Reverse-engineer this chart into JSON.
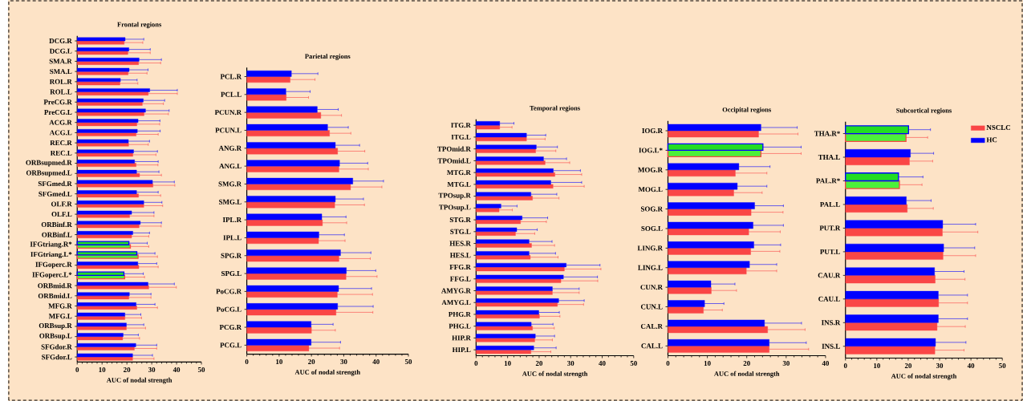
{
  "chart_data": [
    {
      "type": "bar",
      "orientation": "horizontal",
      "title": "Frontal regions",
      "xlabel": "AUC of nodal strength",
      "xlim": [
        0,
        50
      ],
      "xticks": [
        0,
        10,
        20,
        30,
        40,
        50
      ],
      "categories": [
        "DCG.R",
        "DCG.L",
        "SMA.R",
        "SMA.L",
        "ROL.R",
        "ROL.L",
        "PreCG.R",
        "PreCG.L",
        "ACG.R",
        "ACG.L",
        "REC.R",
        "REC.L",
        "ORBsupmed.R",
        "ORBsupmed.L",
        "SFGmed.R",
        "SFGmed.L",
        "OLF.R",
        "OLF.L",
        "ORBinf.R",
        "ORBinf.L",
        "IFGtriang.R*",
        "IFGtriang.L*",
        "IFGoperc.R",
        "IFGoperc.L*",
        "ORBmid.R",
        "ORBmid.L",
        "MFG.R",
        "MFG.L",
        "ORBsup.R",
        "ORBsup.L",
        "SFGdor.R",
        "SFGdor.L"
      ],
      "series": [
        {
          "color": "#fa4646",
          "colors": [
            "#fa4646",
            "#fa4646",
            "#fa4646",
            "#fa4646",
            "#fa4646",
            "#fa4646",
            "#fa4646",
            "#fa4646",
            "#fa4646",
            "#fa4646",
            "#fa4646",
            "#fa4646",
            "#fa4646",
            "#fa4646",
            "#fa4646",
            "#fa4646",
            "#fa4646",
            "#fa4646",
            "#fa4646",
            "#fa4646",
            "#4cf03a",
            "#4cf03a",
            "#fa4646",
            "#4cf03a",
            "#fa4646",
            "#fa4646",
            "#fa4646",
            "#fa4646",
            "#fa4646",
            "#fa4646",
            "#fa4646",
            "#fa4646"
          ],
          "values": [
            18.9,
            20.4,
            24.7,
            20.5,
            17.2,
            28.6,
            26.2,
            26.9,
            24.0,
            23.7,
            20.7,
            22.4,
            23.7,
            25.1,
            30.5,
            24.7,
            26.8,
            21.1,
            24.9,
            21.9,
            21.4,
            24.5,
            24.8,
            19.1,
            28.8,
            20.8,
            24.0,
            19.2,
            19.8,
            18.3,
            23.0,
            22.3
          ],
          "errors": [
            [
              18.9,
              26.4
            ],
            [
              20.4,
              29.4
            ],
            [
              24.7,
              33.6
            ],
            [
              20.5,
              28.1
            ],
            [
              17.2,
              24.4
            ],
            [
              28.6,
              40.3
            ],
            [
              26.2,
              34.7
            ],
            [
              26.9,
              36.7
            ],
            [
              24.0,
              33.2
            ],
            [
              23.7,
              32.6
            ],
            [
              20.7,
              28.6
            ],
            [
              22.4,
              31.7
            ],
            [
              23.7,
              32.5
            ],
            [
              25.1,
              33.9
            ],
            [
              30.5,
              39.3
            ],
            [
              24.7,
              33.6
            ],
            [
              26.8,
              34.4
            ],
            [
              21.1,
              30.9
            ],
            [
              24.9,
              33.8
            ],
            [
              21.9,
              28.8
            ],
            [
              21.4,
              28.8
            ],
            [
              24.5,
              32.3
            ],
            [
              24.8,
              32.6
            ],
            [
              19.1,
              27.1
            ],
            [
              28.8,
              39.9
            ],
            [
              20.8,
              29.7
            ],
            [
              24.0,
              32.3
            ],
            [
              19.2,
              25.9
            ],
            [
              19.8,
              27.5
            ],
            [
              18.3,
              25.1
            ],
            [
              23.0,
              32.0
            ],
            [
              22.3,
              30.9
            ]
          ]
        },
        {
          "color": "#0000ff",
          "colors": [
            "#0000ff",
            "#0000ff",
            "#0000ff",
            "#0000ff",
            "#0000ff",
            "#0000ff",
            "#0000ff",
            "#0000ff",
            "#0000ff",
            "#0000ff",
            "#0000ff",
            "#0000ff",
            "#0000ff",
            "#0000ff",
            "#0000ff",
            "#0000ff",
            "#0000ff",
            "#0000ff",
            "#0000ff",
            "#0000ff",
            "#22dd22",
            "#22dd22",
            "#0000ff",
            "#22dd22",
            "#0000ff",
            "#0000ff",
            "#0000ff",
            "#0000ff",
            "#0000ff",
            "#0000ff",
            "#0000ff",
            "#0000ff"
          ],
          "values": [
            19.3,
            20.8,
            24.9,
            20.9,
            17.4,
            29.2,
            26.6,
            27.5,
            24.5,
            24.2,
            20.6,
            22.7,
            23.1,
            23.9,
            30.3,
            23.9,
            26.8,
            21.9,
            25.4,
            22.4,
            20.8,
            24.0,
            24.4,
            18.8,
            28.5,
            21.0,
            23.7,
            19.2,
            19.8,
            18.5,
            23.6,
            22.3
          ],
          "errors": [
            [
              19.3,
              26.8
            ],
            [
              20.8,
              29.4
            ],
            [
              24.9,
              33.9
            ],
            [
              20.9,
              28.5
            ],
            [
              17.4,
              24.1
            ],
            [
              29.2,
              40.3
            ],
            [
              26.6,
              35.2
            ],
            [
              27.5,
              37.0
            ],
            [
              24.5,
              33.3
            ],
            [
              24.2,
              33.4
            ],
            [
              20.6,
              29.1
            ],
            [
              22.7,
              32.3
            ],
            [
              23.1,
              32.6
            ],
            [
              23.9,
              32.9
            ],
            [
              30.3,
              39.1
            ],
            [
              23.9,
              32.6
            ],
            [
              26.8,
              34.1
            ],
            [
              21.9,
              30.9
            ],
            [
              25.4,
              33.9
            ],
            [
              22.4,
              29.1
            ],
            [
              20.8,
              28.2
            ],
            [
              24.0,
              31.3
            ],
            [
              24.4,
              32.0
            ],
            [
              18.8,
              26.6
            ],
            [
              28.5,
              39.1
            ],
            [
              21.0,
              29.7
            ],
            [
              23.7,
              31.3
            ],
            [
              19.2,
              25.6
            ],
            [
              19.8,
              26.8
            ],
            [
              18.5,
              24.6
            ],
            [
              23.6,
              32.0
            ],
            [
              22.3,
              30.3
            ]
          ]
        }
      ]
    },
    {
      "type": "bar",
      "orientation": "horizontal",
      "title": "Parietal regions",
      "xlabel": "AUC of nodal strength",
      "xlim": [
        0,
        50
      ],
      "xticks": [
        0,
        10,
        20,
        30,
        40,
        50
      ],
      "categories": [
        "PCL.R",
        "PCL.L",
        "PCUN.R",
        "PCUN.L",
        "ANG.R",
        "ANG.L",
        "SMG.R",
        "SMG.L",
        "IPL.R",
        "IPL.L",
        "SPG.R",
        "SPG.L",
        "PoCG.R",
        "PoCG.L",
        "PCG.R",
        "PCG.L"
      ],
      "series": [
        {
          "color": "#fa4646",
          "values": [
            13.4,
            12.2,
            22.9,
            25.6,
            28.1,
            28.5,
            32.1,
            27.2,
            23.4,
            22.2,
            28.5,
            30.7,
            28.0,
            27.6,
            20.0,
            19.2
          ],
          "errors": [
            [
              13.4,
              21.1
            ],
            [
              12.2,
              19.1
            ],
            [
              22.9,
              29.3
            ],
            [
              25.6,
              32.2
            ],
            [
              28.1,
              36.5
            ],
            [
              28.5,
              37.6
            ],
            [
              32.1,
              41.8
            ],
            [
              27.2,
              36.4
            ],
            [
              23.4,
              30.9
            ],
            [
              22.2,
              30.4
            ],
            [
              28.5,
              38.2
            ],
            [
              30.7,
              40.3
            ],
            [
              28.0,
              38.9
            ],
            [
              27.6,
              39.0
            ],
            [
              20.0,
              27.4
            ],
            [
              19.2,
              28.7
            ]
          ]
        },
        {
          "color": "#0000ff",
          "values": [
            13.8,
            12.1,
            21.8,
            25.0,
            27.4,
            28.7,
            32.8,
            27.4,
            23.2,
            22.3,
            29.0,
            30.8,
            28.4,
            28.1,
            19.9,
            19.9
          ],
          "errors": [
            [
              13.8,
              22.0
            ],
            [
              12.1,
              19.6
            ],
            [
              21.8,
              28.3
            ],
            [
              25.0,
              31.4
            ],
            [
              27.4,
              34.9
            ],
            [
              28.7,
              37.4
            ],
            [
              32.8,
              42.3
            ],
            [
              27.4,
              36.1
            ],
            [
              23.2,
              30.7
            ],
            [
              22.3,
              30.2
            ],
            [
              29.0,
              38.4
            ],
            [
              30.8,
              39.9
            ],
            [
              28.4,
              38.6
            ],
            [
              28.1,
              39.1
            ],
            [
              19.9,
              26.7
            ],
            [
              19.9,
              29.0
            ]
          ]
        }
      ]
    },
    {
      "type": "bar",
      "orientation": "horizontal",
      "title": "Temporal regions",
      "xlabel": "AUC of nodal strength",
      "xlim": [
        0,
        50
      ],
      "xticks": [
        0,
        10,
        20,
        30,
        40,
        50
      ],
      "categories": [
        "ITG.R",
        "ITG.L",
        "TPOmid.R",
        "TPOmid.L",
        "MTG.R",
        "MTG.L",
        "TPOsup.R",
        "TPOsup.L",
        "STG.R",
        "STG.L",
        "HES.R",
        "HES.L",
        "FFG.R",
        "FFG.L",
        "AMYG.R",
        "AMYG.L",
        "PHG.R",
        "PHG.L",
        "HIP.R",
        "HIP.L"
      ],
      "series": [
        {
          "color": "#fa4646",
          "values": [
            7.5,
            16.0,
            18.9,
            21.9,
            25.0,
            24.4,
            17.9,
            7.3,
            14.1,
            12.5,
            17.6,
            17.2,
            28.0,
            26.9,
            24.2,
            25.8,
            20.1,
            17.9,
            18.6,
            17.4
          ],
          "errors": [
            [
              7.5,
              11.4
            ],
            [
              16.0,
              21.9
            ],
            [
              18.9,
              25.3
            ],
            [
              21.9,
              29.7
            ],
            [
              25.0,
              33.5
            ],
            [
              24.4,
              34.3
            ],
            [
              17.9,
              26.3
            ],
            [
              7.3,
              11.5
            ],
            [
              14.1,
              22.3
            ],
            [
              12.5,
              18.6
            ],
            [
              17.6,
              24.9
            ],
            [
              17.2,
              26.0
            ],
            [
              28.0,
              39.6
            ],
            [
              26.9,
              38.6
            ],
            [
              24.2,
              32.7
            ],
            [
              25.8,
              34.1
            ],
            [
              20.1,
              26.6
            ],
            [
              17.9,
              24.8
            ],
            [
              18.6,
              24.2
            ],
            [
              17.4,
              23.7
            ]
          ]
        },
        {
          "color": "#0000ff",
          "values": [
            7.5,
            16.0,
            19.1,
            21.4,
            24.5,
            23.7,
            17.4,
            7.9,
            14.6,
            12.9,
            16.8,
            16.8,
            28.6,
            27.7,
            24.2,
            26.2,
            19.9,
            17.5,
            18.8,
            18.3
          ],
          "errors": [
            [
              7.5,
              12.0
            ],
            [
              16.0,
              22.1
            ],
            [
              19.1,
              25.8
            ],
            [
              21.4,
              28.7
            ],
            [
              24.5,
              33.1
            ],
            [
              23.7,
              33.5
            ],
            [
              17.4,
              25.6
            ],
            [
              7.9,
              13.0
            ],
            [
              14.6,
              22.7
            ],
            [
              12.9,
              19.4
            ],
            [
              16.8,
              24.1
            ],
            [
              16.8,
              25.2
            ],
            [
              28.6,
              39.3
            ],
            [
              27.7,
              38.5
            ],
            [
              24.2,
              32.7
            ],
            [
              26.2,
              34.3
            ],
            [
              19.9,
              26.4
            ],
            [
              17.5,
              24.4
            ],
            [
              18.8,
              24.9
            ],
            [
              18.3,
              25.4
            ]
          ]
        }
      ]
    },
    {
      "type": "bar",
      "orientation": "horizontal",
      "title": "Occipital regions",
      "xlabel": "AUC of nodal strength",
      "xlim": [
        0,
        40
      ],
      "xticks": [
        0,
        10,
        20,
        30,
        40
      ],
      "categories": [
        "IOG.R",
        "IOG.L*",
        "MOG.R",
        "MOG.L",
        "SOG.R",
        "SOG.L",
        "LING.R",
        "LING.L",
        "CUN.R",
        "CUN.L",
        "CAL.R",
        "CAL.L"
      ],
      "series": [
        {
          "color": "#fa4646",
          "colors": [
            "#fa4646",
            "#4cf03a",
            "#fa4646",
            "#fa4646",
            "#fa4646",
            "#fa4646",
            "#fa4646",
            "#fa4646",
            "#fa4646",
            "#fa4646",
            "#fa4646",
            "#fa4646"
          ],
          "values": [
            23.0,
            23.6,
            17.1,
            16.7,
            21.1,
            20.5,
            21.0,
            19.9,
            11.0,
            9.0,
            25.3,
            25.7
          ],
          "errors": [
            [
              23.0,
              33.0
            ],
            [
              23.6,
              33.8
            ],
            [
              17.1,
              25.1
            ],
            [
              16.7,
              23.9
            ],
            [
              21.1,
              29.2
            ],
            [
              20.5,
              28.5
            ],
            [
              21.0,
              28.4
            ],
            [
              19.9,
              27.6
            ],
            [
              11.0,
              17.4
            ],
            [
              9.0,
              13.8
            ],
            [
              25.3,
              34.8
            ],
            [
              25.7,
              35.7
            ]
          ]
        },
        {
          "color": "#0000ff",
          "colors": [
            "#0000ff",
            "#22dd22",
            "#0000ff",
            "#0000ff",
            "#0000ff",
            "#0000ff",
            "#0000ff",
            "#0000ff",
            "#0000ff",
            "#0000ff",
            "#0000ff",
            "#0000ff"
          ],
          "values": [
            23.6,
            24.1,
            18.0,
            17.6,
            22.0,
            21.6,
            21.8,
            20.7,
            10.9,
            9.3,
            24.5,
            25.7
          ],
          "errors": [
            [
              23.6,
              32.8
            ],
            [
              24.1,
              33.8
            ],
            [
              18.0,
              25.9
            ],
            [
              17.6,
              25.1
            ],
            [
              22.0,
              29.3
            ],
            [
              21.6,
              29.3
            ],
            [
              21.8,
              28.6
            ],
            [
              20.7,
              27.6
            ],
            [
              10.9,
              17.0
            ],
            [
              9.3,
              14.2
            ],
            [
              24.5,
              33.9
            ],
            [
              25.7,
              35.1
            ]
          ]
        }
      ]
    },
    {
      "type": "bar",
      "orientation": "horizontal",
      "title": "Subcortical regions",
      "xlabel": "AUC of nodal strength",
      "xlim": [
        0,
        50
      ],
      "xticks": [
        0,
        10,
        20,
        30,
        40,
        50
      ],
      "legend": "top right",
      "categories": [
        "THA.R*",
        "THA.L",
        "PAL.R*",
        "PAL.L",
        "PUT.R",
        "PUT.L",
        "CAU.R",
        "CAU.L",
        "INS.R",
        "INS.L"
      ],
      "series": [
        {
          "name": "NSCLC",
          "color": "#fa4646",
          "colors": [
            "#4cf03a",
            "#fa4646",
            "#4cf03a",
            "#fa4646",
            "#fa4646",
            "#fa4646",
            "#fa4646",
            "#fa4646",
            "#fa4646",
            "#fa4646"
          ],
          "values": [
            19.3,
            20.4,
            17.2,
            19.7,
            30.9,
            31.1,
            28.6,
            29.7,
            29.2,
            28.5
          ],
          "errors": [
            [
              19.3,
              26.2
            ],
            [
              20.4,
              27.8
            ],
            [
              17.2,
              24.4
            ],
            [
              19.7,
              28.0
            ],
            [
              30.9,
              42.2
            ],
            [
              31.1,
              41.5
            ],
            [
              28.6,
              38.1
            ],
            [
              29.7,
              38.9
            ],
            [
              29.2,
              38.2
            ],
            [
              28.5,
              37.8
            ]
          ]
        },
        {
          "name": "HC",
          "color": "#0000ff",
          "colors": [
            "#22dd22",
            "#0000ff",
            "#22dd22",
            "#0000ff",
            "#0000ff",
            "#0000ff",
            "#0000ff",
            "#0000ff",
            "#0000ff",
            "#0000ff"
          ],
          "values": [
            20.1,
            20.7,
            16.9,
            19.4,
            31.0,
            31.3,
            28.4,
            29.6,
            29.6,
            28.7
          ],
          "errors": [
            [
              20.1,
              27.1
            ],
            [
              20.7,
              28.1
            ],
            [
              16.9,
              24.7
            ],
            [
              19.4,
              27.3
            ],
            [
              31.0,
              41.5
            ],
            [
              31.3,
              41.2
            ],
            [
              28.4,
              37.8
            ],
            [
              29.6,
              38.9
            ],
            [
              29.6,
              38.9
            ],
            [
              28.7,
              38.4
            ]
          ]
        }
      ]
    }
  ]
}
